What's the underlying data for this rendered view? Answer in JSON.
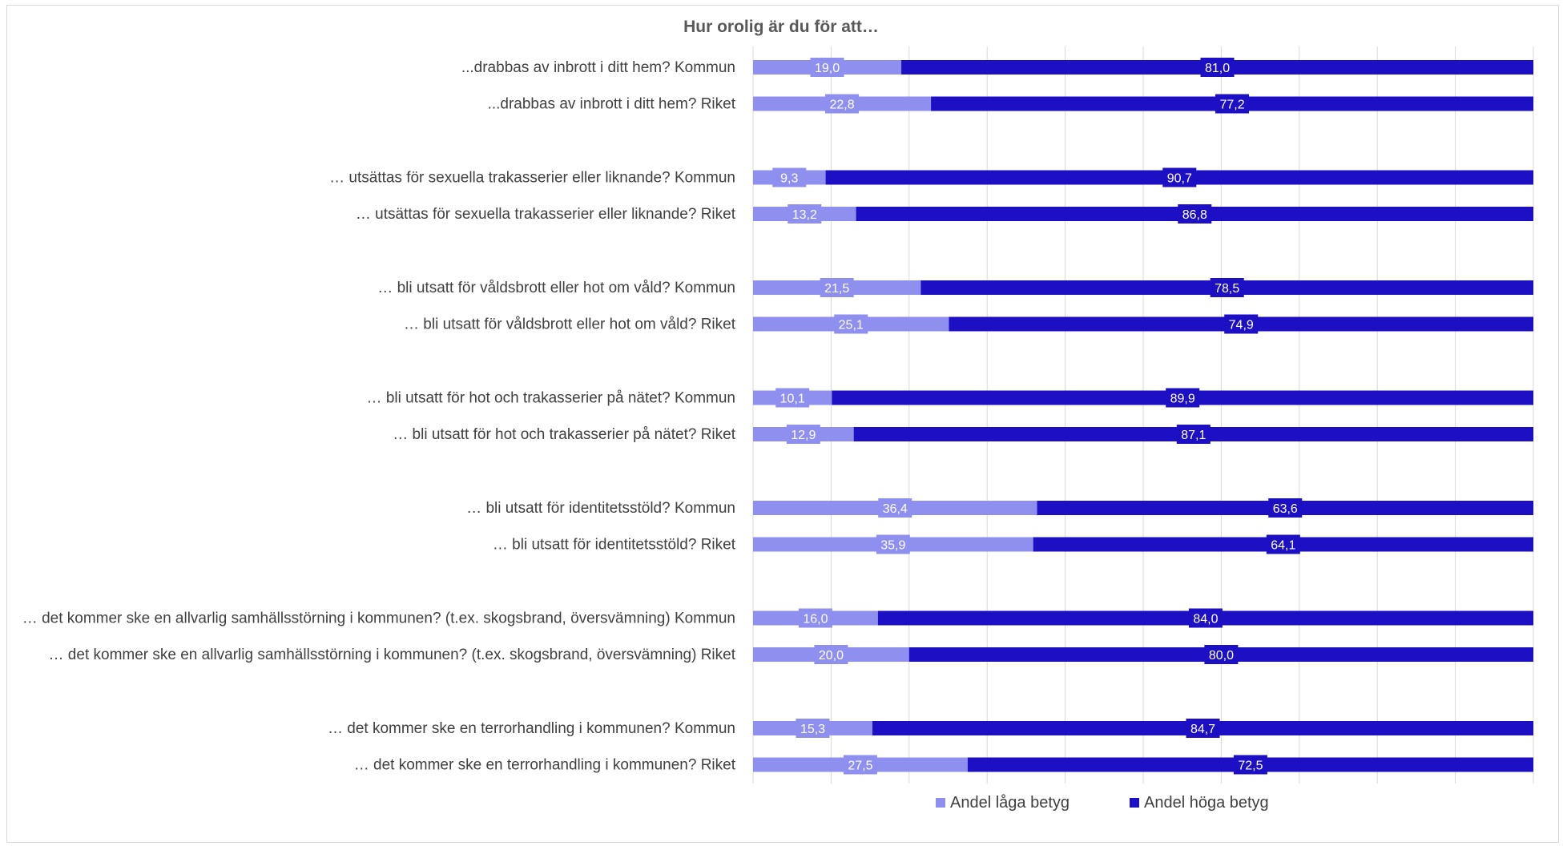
{
  "chart_data": {
    "type": "bar",
    "orientation": "horizontal",
    "stacked": true,
    "percent_stacked": true,
    "title": "Hur orolig är du för att…",
    "categories": [
      "...drabbas av inbrott i ditt hem? Kommun",
      "...drabbas av inbrott i ditt hem? Riket",
      "… utsättas för sexuella trakasserier eller liknande? Kommun",
      "… utsättas för sexuella trakasserier eller liknande? Riket",
      "… bli utsatt för våldsbrott eller hot om våld? Kommun",
      "… bli utsatt för våldsbrott eller hot om våld? Riket",
      "… bli utsatt för hot och trakasserier på nätet? Kommun",
      "… bli utsatt för hot och trakasserier på nätet? Riket",
      "… bli utsatt för identitetsstöld? Kommun",
      "… bli utsatt för identitetsstöld? Riket",
      "… det kommer ske en allvarlig samhällsstörning i kommunen? (t.ex. skogsbrand, översvämning) Kommun",
      "… det kommer ske en allvarlig samhällsstörning i kommunen? (t.ex. skogsbrand, översvämning) Riket",
      "… det kommer ske en terrorhandling i kommunen? Kommun",
      "… det kommer ske en terrorhandling i kommunen? Riket"
    ],
    "series": [
      {
        "name": "Andel låga betyg",
        "color": "#8f8ff0",
        "values": [
          19.0,
          22.8,
          9.3,
          13.2,
          21.5,
          25.1,
          10.1,
          12.9,
          36.4,
          35.9,
          16.0,
          20.0,
          15.3,
          27.5
        ],
        "labels": [
          "19,0",
          "22,8",
          "9,3",
          "13,2",
          "21,5",
          "25,1",
          "10,1",
          "12,9",
          "36,4",
          "35,9",
          "16,0",
          "20,0",
          "15,3",
          "27,5"
        ]
      },
      {
        "name": "Andel höga betyg",
        "color": "#1c0fc4",
        "values": [
          81.0,
          77.2,
          90.7,
          86.8,
          78.5,
          74.9,
          89.9,
          87.1,
          63.6,
          64.1,
          84.0,
          80.0,
          84.7,
          72.5
        ],
        "labels": [
          "81,0",
          "77,2",
          "90,7",
          "86,8",
          "78,5",
          "74,9",
          "89,9",
          "87,1",
          "63,6",
          "64,1",
          "84,0",
          "80,0",
          "84,7",
          "72,5"
        ]
      }
    ],
    "xlim": [
      0,
      100
    ],
    "gridlines": true,
    "legend_position": "bottom"
  }
}
